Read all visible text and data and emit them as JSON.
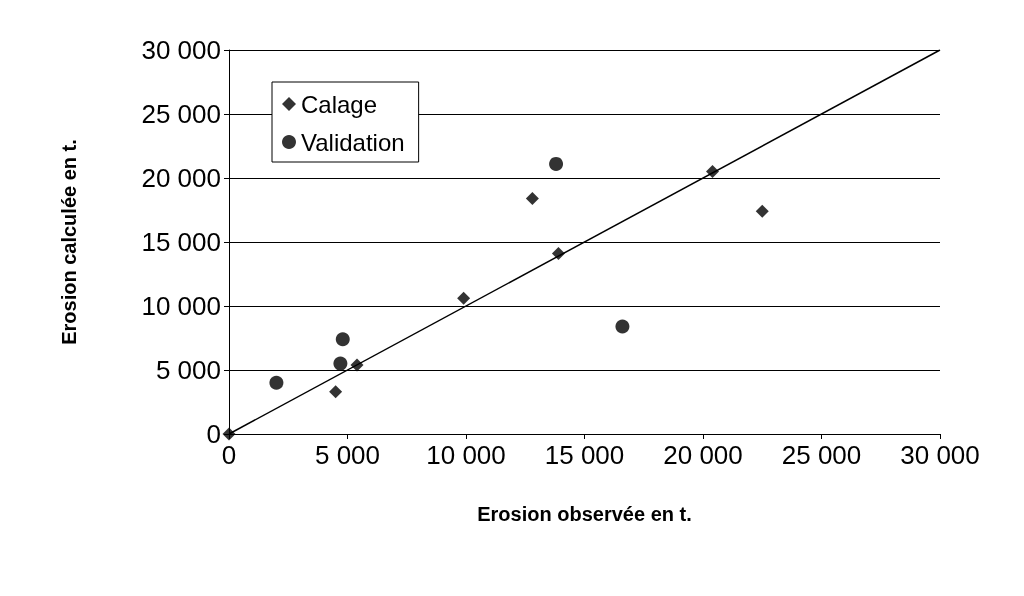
{
  "chart_data": {
    "type": "scatter",
    "xlabel": "Erosion observée en t.",
    "ylabel": "Erosion calculée en t.",
    "xlim": [
      0,
      30000
    ],
    "ylim": [
      0,
      30000
    ],
    "xticks": [
      {
        "value": 0,
        "label": "0"
      },
      {
        "value": 5000,
        "label": "5 000"
      },
      {
        "value": 10000,
        "label": "10 000"
      },
      {
        "value": 15000,
        "label": "15 000"
      },
      {
        "value": 20000,
        "label": "20 000"
      },
      {
        "value": 25000,
        "label": "25 000"
      },
      {
        "value": 30000,
        "label": "30 000"
      }
    ],
    "yticks": [
      {
        "value": 0,
        "label": "0"
      },
      {
        "value": 5000,
        "label": "5 000"
      },
      {
        "value": 10000,
        "label": "10 000"
      },
      {
        "value": 15000,
        "label": "15 000"
      },
      {
        "value": 20000,
        "label": "20 000"
      },
      {
        "value": 25000,
        "label": "25 000"
      },
      {
        "value": 30000,
        "label": "30 000"
      }
    ],
    "grid": "y",
    "legend": "top left",
    "series": [
      {
        "name": "Calage",
        "color": "#000000",
        "marker": "diamond",
        "x": [
          0,
          4500,
          5400,
          9900,
          12800,
          13900,
          20400,
          22500
        ],
        "values": [
          0,
          3300,
          5400,
          10600,
          18400,
          14100,
          20500,
          17400
        ]
      },
      {
        "name": "Validation",
        "color": "#000000",
        "marker": "circle",
        "x": [
          2000,
          4700,
          4800,
          16600,
          13800
        ],
        "values": [
          4000,
          5500,
          7400,
          8400,
          21100
        ]
      },
      {
        "type": "line",
        "color": "#000000",
        "marker": "none",
        "line_style": "solid",
        "x": [
          0,
          30000
        ],
        "values": [
          0,
          30000
        ]
      }
    ]
  }
}
